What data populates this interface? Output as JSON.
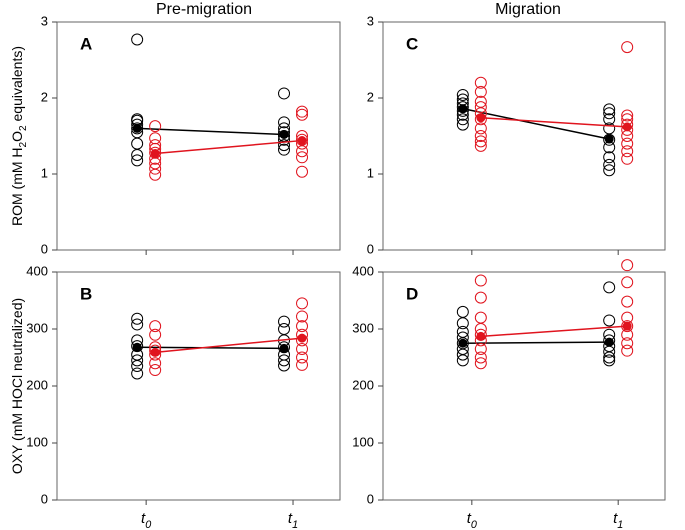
{
  "column_titles": [
    "Pre-migration",
    "Migration"
  ],
  "chart_data": [
    {
      "type": "strip",
      "panel_label": "A",
      "ylabel": "ROM (mM H2O2 equivalents)",
      "ylim": [
        0,
        3
      ],
      "yticks": [
        0,
        1,
        2,
        3
      ],
      "series": [
        {
          "color": "#000000",
          "points": [
            [
              2.77,
              1.72,
              1.7,
              1.65,
              1.6,
              1.55,
              1.4,
              1.25,
              1.18
            ],
            [
              2.06,
              1.68,
              1.6,
              1.55,
              1.5,
              1.45,
              1.38,
              1.32
            ]
          ],
          "means": [
            1.6,
            1.52
          ]
        },
        {
          "color": "#e0141e",
          "points": [
            [
              1.63,
              1.47,
              1.38,
              1.33,
              1.28,
              1.2,
              1.14,
              1.07,
              0.99
            ],
            [
              1.82,
              1.78,
              1.5,
              1.45,
              1.4,
              1.3,
              1.22,
              1.03
            ]
          ],
          "means": [
            1.27,
            1.44
          ]
        }
      ]
    },
    {
      "type": "strip",
      "panel_label": "B",
      "ylabel": "OXY (mM HOCl neutralized)",
      "categories": [
        "t0",
        "t1"
      ],
      "ylim": [
        0,
        400
      ],
      "yticks": [
        0,
        100,
        200,
        300,
        400
      ],
      "series": [
        {
          "color": "#000000",
          "points": [
            [
              318,
              308,
              280,
              270,
              255,
              245,
              235,
              222
            ],
            [
              313,
              300,
              280,
              268,
              255,
              245,
              236
            ]
          ],
          "means": [
            268,
            266
          ]
        },
        {
          "color": "#e0141e",
          "points": [
            [
              305,
              290,
              268,
              262,
              255,
              240,
              228
            ],
            [
              345,
              322,
              305,
              290,
              280,
              265,
              250,
              237
            ]
          ],
          "means": [
            259,
            284
          ]
        }
      ]
    },
    {
      "type": "strip",
      "panel_label": "C",
      "ylim": [
        0,
        3
      ],
      "yticks": [
        0,
        1,
        2,
        3
      ],
      "series": [
        {
          "color": "#000000",
          "points": [
            [
              2.04,
              1.98,
              1.93,
              1.88,
              1.83,
              1.78,
              1.72,
              1.65
            ],
            [
              1.85,
              1.8,
              1.72,
              1.6,
              1.45,
              1.35,
              1.22,
              1.12,
              1.05
            ]
          ],
          "means": [
            1.86,
            1.46
          ]
        },
        {
          "color": "#e0141e",
          "points": [
            [
              2.2,
              2.08,
              1.95,
              1.88,
              1.8,
              1.72,
              1.6,
              1.5,
              1.43,
              1.37
            ],
            [
              2.67,
              1.77,
              1.72,
              1.65,
              1.58,
              1.5,
              1.4,
              1.3,
              1.2
            ]
          ],
          "means": [
            1.74,
            1.62
          ]
        }
      ]
    },
    {
      "type": "strip",
      "panel_label": "D",
      "categories": [
        "t0",
        "t1"
      ],
      "ylim": [
        0,
        400
      ],
      "yticks": [
        0,
        100,
        200,
        300,
        400
      ],
      "series": [
        {
          "color": "#000000",
          "points": [
            [
              330,
              310,
              295,
              285,
              275,
              265,
              255,
              245
            ],
            [
              373,
              315,
              290,
              280,
              270,
              260,
              250,
              245
            ]
          ],
          "means": [
            275,
            277
          ]
        },
        {
          "color": "#e0141e",
          "points": [
            [
              385,
              355,
              320,
              300,
              290,
              280,
              265,
              250,
              240
            ],
            [
              412,
              382,
              348,
              320,
              305,
              290,
              275,
              262
            ]
          ],
          "means": [
            287,
            305
          ]
        }
      ]
    }
  ]
}
